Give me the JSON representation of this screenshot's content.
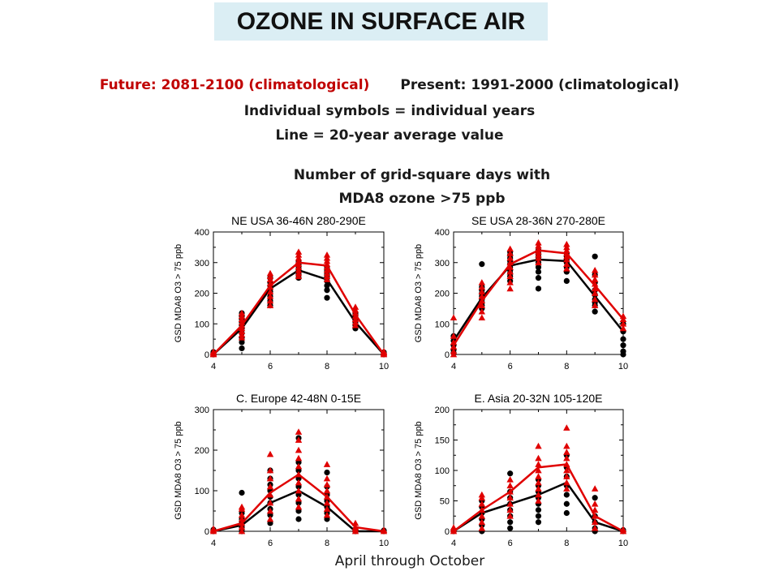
{
  "page": {
    "title": "OZONE IN SURFACE AIR",
    "future_label": "Future: 2081-2100 (climatological)",
    "present_label": "Present: 1991-2000 (climatological)",
    "symbols_note": "Individual symbols = individual years",
    "line_note": "Line = 20-year average value",
    "subtitle_line1": "Number of grid-square days with",
    "subtitle_line2": "MDA8 ozone >75 ppb",
    "footer": "April through October"
  },
  "colors": {
    "present": "#000000",
    "future": "#e00000",
    "title_bg": "#dbeef4"
  },
  "chart_data": [
    {
      "type": "line",
      "title": "NE USA 36-46N 280-290E",
      "ylabel": "GSD MDA8 O3 > 75 ppb",
      "xlim": [
        4,
        10
      ],
      "ylim": [
        0,
        400
      ],
      "xticks": [
        4,
        6,
        8,
        10
      ],
      "yticks": [
        0,
        100,
        200,
        300,
        400
      ],
      "grid": false,
      "series": [
        {
          "key": "present",
          "marker": "circle",
          "x": [
            4,
            5,
            6,
            7,
            8,
            9,
            10
          ],
          "mean": [
            0,
            85,
            215,
            275,
            245,
            105,
            0
          ],
          "years": [
            [
              0,
              2,
              5,
              8,
              0,
              3
            ],
            [
              20,
              40,
              55,
              70,
              85,
              95,
              105,
              115,
              125,
              135
            ],
            [
              160,
              175,
              190,
              205,
              215,
              225,
              235,
              250
            ],
            [
              250,
              262,
              272,
              282,
              292,
              302
            ],
            [
              185,
              210,
              225,
              240,
              252,
              262,
              272,
              282
            ],
            [
              85,
              95,
              105,
              112,
              122,
              132
            ],
            [
              0,
              3,
              7,
              1
            ]
          ]
        },
        {
          "key": "future",
          "marker": "triangle",
          "x": [
            4,
            5,
            6,
            7,
            8,
            9,
            10
          ],
          "mean": [
            0,
            95,
            225,
            300,
            290,
            130,
            0
          ],
          "years": [
            [
              0,
              3,
              6,
              9,
              2
            ],
            [
              55,
              65,
              75,
              85,
              95,
              105,
              115,
              125,
              135
            ],
            [
              160,
              175,
              190,
              205,
              220,
              232,
              245,
              255,
              265
            ],
            [
              255,
              265,
              275,
              285,
              295,
              305,
              315,
              325,
              335
            ],
            [
              245,
              255,
              265,
              275,
              285,
              295,
              305,
              315,
              325
            ],
            [
              95,
              105,
              115,
              125,
              135,
              145,
              155
            ],
            [
              0,
              3,
              6,
              10
            ]
          ]
        }
      ]
    },
    {
      "type": "line",
      "title": "SE USA 28-36N 270-280E",
      "ylabel": "GSD MDA8 O3 > 75 ppb",
      "xlim": [
        4,
        10
      ],
      "ylim": [
        0,
        400
      ],
      "xticks": [
        4,
        6,
        8,
        10
      ],
      "yticks": [
        0,
        100,
        200,
        300,
        400
      ],
      "grid": false,
      "series": [
        {
          "key": "present",
          "marker": "circle",
          "x": [
            4,
            5,
            6,
            7,
            8,
            9,
            10
          ],
          "mean": [
            45,
            185,
            290,
            310,
            305,
            190,
            75
          ],
          "years": [
            [
              5,
              15,
              30,
              45,
              60
            ],
            [
              150,
              160,
              170,
              180,
              190,
              200,
              210,
              220,
              295
            ],
            [
              240,
              255,
              265,
              275,
              285,
              295,
              305,
              315,
              325,
              335
            ],
            [
              215,
              250,
              270,
              285,
              300,
              310,
              320,
              330,
              340
            ],
            [
              240,
              270,
              285,
              300,
              310,
              320,
              330
            ],
            [
              140,
              160,
              170,
              180,
              195,
              210,
              235,
              260,
              320
            ],
            [
              0,
              10,
              30,
              50,
              75,
              100
            ]
          ]
        },
        {
          "key": "future",
          "marker": "triangle",
          "x": [
            4,
            5,
            6,
            7,
            8,
            9,
            10
          ],
          "mean": [
            30,
            175,
            295,
            340,
            330,
            225,
            115
          ],
          "years": [
            [
              0,
              10,
              25,
              40,
              60,
              120
            ],
            [
              120,
              140,
              160,
              175,
              190,
              205,
              220,
              235
            ],
            [
              215,
              235,
              255,
              270,
              285,
              300,
              315,
              330,
              345
            ],
            [
              300,
              315,
              325,
              335,
              345,
              355,
              365
            ],
            [
              280,
              295,
              310,
              320,
              330,
              340,
              350,
              360
            ],
            [
              160,
              180,
              200,
              215,
              230,
              245,
              260,
              275
            ],
            [
              85,
              100,
              115,
              125
            ]
          ]
        }
      ]
    },
    {
      "type": "line",
      "title": "C. Europe 42-48N 0-15E",
      "ylabel": "GSD MDA8 O3 > 75 ppb",
      "xlim": [
        4,
        10
      ],
      "ylim": [
        0,
        300
      ],
      "xticks": [
        4,
        6,
        8,
        10
      ],
      "yticks": [
        0,
        100,
        200,
        300
      ],
      "grid": false,
      "series": [
        {
          "key": "present",
          "marker": "circle",
          "x": [
            4,
            5,
            6,
            7,
            8,
            9,
            10
          ],
          "mean": [
            0,
            15,
            70,
            100,
            60,
            0,
            0
          ],
          "years": [
            [
              0,
              2,
              4,
              1
            ],
            [
              0,
              10,
              20,
              30,
              45,
              95
            ],
            [
              20,
              40,
              55,
              70,
              85,
              100,
              115,
              130,
              150
            ],
            [
              30,
              50,
              70,
              90,
              110,
              130,
              150,
              170,
              230
            ],
            [
              30,
              45,
              60,
              75,
              90,
              110,
              145
            ],
            [
              0,
              2,
              5,
              1
            ],
            [
              0,
              2,
              1
            ]
          ]
        },
        {
          "key": "future",
          "marker": "triangle",
          "x": [
            4,
            5,
            6,
            7,
            8,
            9,
            10
          ],
          "mean": [
            0,
            20,
            95,
            140,
            85,
            10,
            0
          ],
          "years": [
            [
              0,
              3,
              6
            ],
            [
              0,
              10,
              20,
              30,
              40,
              55,
              60
            ],
            [
              30,
              50,
              70,
              90,
              110,
              130,
              150,
              190
            ],
            [
              60,
              80,
              100,
              120,
              140,
              160,
              180,
              200,
              225,
              245
            ],
            [
              40,
              55,
              70,
              85,
              100,
              115,
              130,
              165
            ],
            [
              0,
              5,
              10,
              20
            ],
            [
              0,
              3
            ]
          ]
        }
      ]
    },
    {
      "type": "line",
      "title": "E. Asia 20-32N 105-120E",
      "ylabel": "GSD MDA8 O3 > 75 ppb",
      "xlim": [
        4,
        10
      ],
      "ylim": [
        0,
        200
      ],
      "xticks": [
        4,
        6,
        8,
        10
      ],
      "yticks": [
        0,
        50,
        100,
        150,
        200
      ],
      "grid": false,
      "series": [
        {
          "key": "present",
          "marker": "circle",
          "x": [
            4,
            5,
            6,
            7,
            8,
            9,
            10
          ],
          "mean": [
            0,
            30,
            45,
            60,
            80,
            15,
            0
          ],
          "years": [
            [
              0,
              2,
              1
            ],
            [
              0,
              10,
              20,
              30,
              40,
              50
            ],
            [
              5,
              15,
              25,
              35,
              45,
              55,
              65,
              95
            ],
            [
              15,
              25,
              35,
              45,
              55,
              65,
              75,
              85
            ],
            [
              30,
              45,
              60,
              75,
              90,
              105,
              125
            ],
            [
              0,
              5,
              15,
              25,
              55
            ],
            [
              0,
              2
            ]
          ]
        },
        {
          "key": "future",
          "marker": "triangle",
          "x": [
            4,
            5,
            6,
            7,
            8,
            9,
            10
          ],
          "mean": [
            0,
            35,
            65,
            105,
            110,
            25,
            0
          ],
          "years": [
            [
              0,
              3,
              6
            ],
            [
              5,
              15,
              25,
              35,
              45,
              55,
              60
            ],
            [
              25,
              35,
              45,
              55,
              65,
              75,
              85
            ],
            [
              50,
              60,
              70,
              80,
              90,
              100,
              110,
              120,
              140
            ],
            [
              70,
              80,
              90,
              100,
              110,
              120,
              130,
              140,
              170
            ],
            [
              5,
              15,
              25,
              35,
              45,
              70
            ],
            [
              0,
              3
            ]
          ]
        }
      ]
    }
  ]
}
